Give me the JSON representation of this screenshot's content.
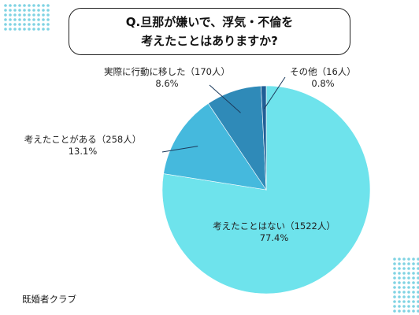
{
  "title": {
    "line1": "Q.旦那が嫌いで、浮気・不倫を",
    "line2": "考えたことはありますか?"
  },
  "source": "既婚者クラブ",
  "colors": {
    "dots": "#7fd3e3",
    "leader_line": "#1c3a5c"
  },
  "chart_data": {
    "type": "pie",
    "start_angle_deg": 0,
    "direction": "clockwise",
    "slices": [
      {
        "label": "考えたことはない（1522人）",
        "percent_label": "77.4%",
        "value": 77.4,
        "color": "#6ee3ec"
      },
      {
        "label": "考えたことがある（258人）",
        "percent_label": "13.1%",
        "value": 13.1,
        "color": "#45b9dd"
      },
      {
        "label": "実際に行動に移した（170人）",
        "percent_label": "8.6%",
        "value": 8.6,
        "color": "#2f8ab8"
      },
      {
        "label": "その他（16人）",
        "percent_label": "0.8%",
        "value": 0.8,
        "color": "#1f5f96"
      }
    ]
  }
}
